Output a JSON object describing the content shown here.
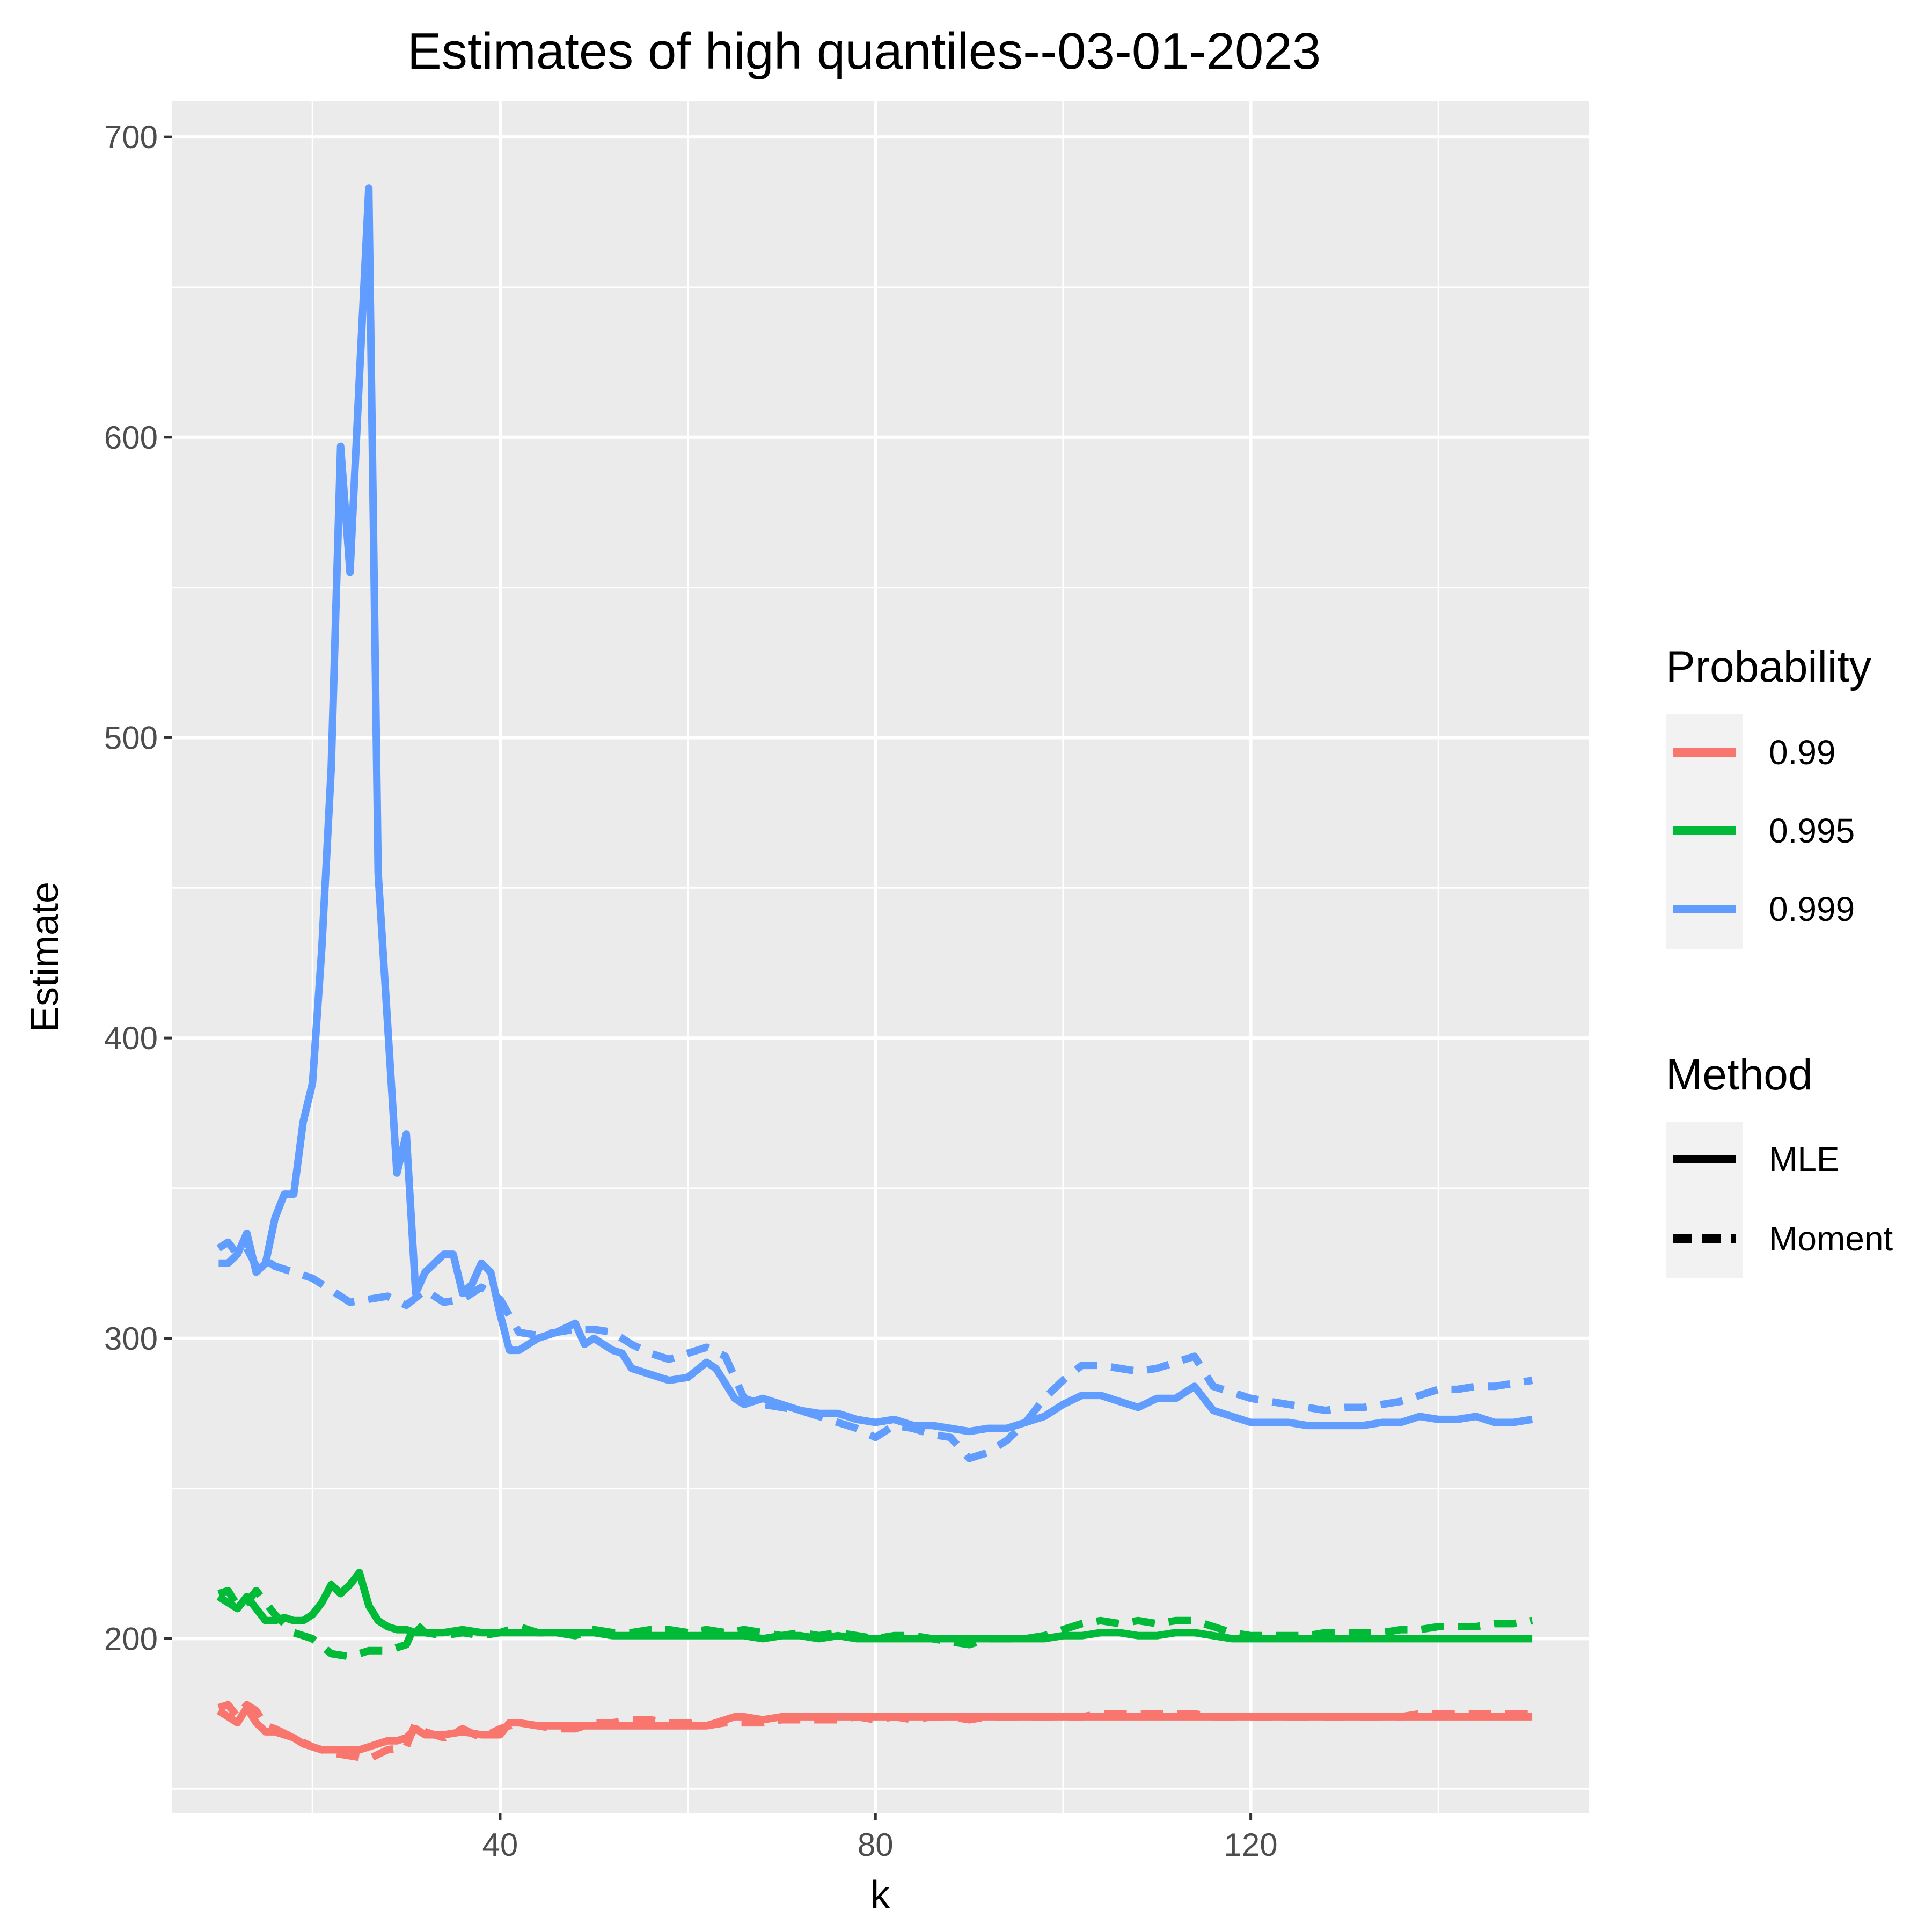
{
  "chart_data": {
    "type": "line",
    "title": "Estimates of high quantiles--03-01-2023",
    "xlabel": "k",
    "ylabel": "Estimate",
    "xlim": [
      5,
      156
    ],
    "ylim": [
      142,
      712
    ],
    "x_ticks": [
      40,
      80,
      120
    ],
    "y_ticks": [
      200,
      300,
      400,
      500,
      600,
      700
    ],
    "x_tick_labels": [
      "40",
      "80",
      "120"
    ],
    "y_tick_labels": [
      "200",
      "300",
      "400",
      "500",
      "600",
      "700"
    ],
    "grid": true,
    "background": "#ebebeb",
    "legend_placement": "right",
    "legends": [
      {
        "title": "Probability",
        "entries": [
          {
            "label": "0.99",
            "color": "#f8766d"
          },
          {
            "label": "0.995",
            "color": "#00ba38"
          },
          {
            "label": "0.999",
            "color": "#619cff"
          }
        ]
      },
      {
        "title": "Method",
        "entries": [
          {
            "label": "MLE",
            "linetype": "solid",
            "color": "#000000"
          },
          {
            "label": "Moment",
            "linetype": "dashed",
            "color": "#000000"
          }
        ]
      }
    ],
    "series": [
      {
        "probability": "0.999",
        "method": "MLE",
        "color": "#619cff",
        "dashed": false,
        "x": [
          10,
          11,
          12,
          13,
          14,
          15,
          16,
          17,
          18,
          19,
          20,
          21,
          22,
          23,
          24,
          25,
          26,
          27,
          28,
          29,
          30,
          31,
          32,
          34,
          35,
          36,
          37,
          38,
          39,
          40,
          41,
          42,
          44,
          46,
          48,
          49,
          50,
          52,
          53,
          54,
          56,
          58,
          60,
          62,
          63,
          64,
          65,
          66,
          68,
          70,
          72,
          74,
          76,
          78,
          80,
          82,
          84,
          86,
          88,
          90,
          92,
          94,
          96,
          98,
          100,
          102,
          104,
          106,
          108,
          110,
          112,
          114,
          115,
          116,
          118,
          120,
          122,
          124,
          126,
          128,
          130,
          132,
          134,
          136,
          138,
          140,
          142,
          144,
          146,
          148,
          150
        ],
        "y": [
          325,
          325,
          328,
          335,
          322,
          325,
          340,
          348,
          348,
          372,
          385,
          430,
          490,
          597,
          555,
          620,
          683,
          455,
          405,
          355,
          368,
          315,
          322,
          328,
          328,
          315,
          318,
          325,
          322,
          308,
          296,
          296,
          300,
          302,
          305,
          298,
          300,
          296,
          295,
          290,
          288,
          286,
          287,
          292,
          290,
          285,
          280,
          278,
          280,
          278,
          276,
          275,
          275,
          273,
          272,
          273,
          271,
          271,
          270,
          269,
          270,
          270,
          272,
          274,
          278,
          281,
          281,
          279,
          277,
          280,
          280,
          284,
          280,
          276,
          274,
          272,
          272,
          272,
          271,
          271,
          271,
          271,
          272,
          272,
          274,
          273,
          273,
          274,
          272,
          272,
          273
        ]
      },
      {
        "probability": "0.999",
        "method": "Moment",
        "color": "#619cff",
        "dashed": true,
        "x": [
          10,
          11,
          12,
          13,
          14,
          15,
          16,
          18,
          20,
          22,
          24,
          26,
          28,
          30,
          32,
          34,
          36,
          38,
          40,
          42,
          44,
          46,
          48,
          50,
          52,
          54,
          56,
          58,
          60,
          62,
          64,
          66,
          68,
          70,
          72,
          74,
          76,
          78,
          80,
          82,
          84,
          86,
          88,
          90,
          92,
          94,
          96,
          98,
          100,
          102,
          104,
          106,
          108,
          110,
          112,
          114,
          116,
          118,
          120,
          122,
          124,
          126,
          128,
          130,
          132,
          134,
          136,
          138,
          140,
          142,
          144,
          146,
          148,
          150
        ],
        "y": [
          330,
          332,
          328,
          330,
          324,
          326,
          324,
          322,
          320,
          316,
          312,
          313,
          314,
          311,
          316,
          312,
          313,
          317,
          313,
          302,
          301,
          302,
          303,
          303,
          302,
          298,
          295,
          293,
          295,
          297,
          294,
          280,
          278,
          277,
          276,
          274,
          272,
          270,
          267,
          271,
          270,
          268,
          267,
          260,
          262,
          266,
          272,
          280,
          286,
          291,
          291,
          290,
          289,
          290,
          292,
          294,
          284,
          282,
          280,
          279,
          278,
          277,
          276,
          277,
          277,
          278,
          279,
          281,
          283,
          283,
          284,
          284,
          285,
          286
        ]
      },
      {
        "probability": "0.995",
        "method": "MLE",
        "color": "#00ba38",
        "dashed": false,
        "x": [
          10,
          11,
          12,
          13,
          14,
          15,
          16,
          17,
          18,
          19,
          20,
          21,
          22,
          23,
          24,
          25,
          26,
          27,
          28,
          29,
          30,
          31,
          32,
          34,
          36,
          38,
          40,
          42,
          44,
          46,
          48,
          50,
          52,
          54,
          56,
          58,
          60,
          62,
          64,
          66,
          68,
          70,
          72,
          74,
          76,
          78,
          80,
          82,
          84,
          86,
          88,
          90,
          92,
          94,
          96,
          98,
          100,
          102,
          104,
          106,
          108,
          110,
          112,
          114,
          116,
          118,
          120,
          122,
          124,
          126,
          128,
          130,
          132,
          134,
          136,
          138,
          140,
          142,
          144,
          146,
          148,
          150
        ],
        "y": [
          214,
          212,
          210,
          214,
          210,
          206,
          206,
          207,
          206,
          206,
          208,
          212,
          218,
          215,
          218,
          222,
          211,
          206,
          204,
          203,
          203,
          202,
          202,
          202,
          203,
          202,
          202,
          202,
          202,
          202,
          202,
          202,
          201,
          201,
          201,
          201,
          201,
          201,
          201,
          201,
          200,
          201,
          201,
          200,
          201,
          200,
          200,
          200,
          200,
          200,
          200,
          200,
          200,
          200,
          200,
          200,
          201,
          201,
          202,
          202,
          201,
          201,
          202,
          202,
          201,
          200,
          200,
          200,
          200,
          200,
          200,
          200,
          200,
          200,
          200,
          200,
          200,
          200,
          200,
          200,
          200,
          200
        ]
      },
      {
        "probability": "0.995",
        "method": "Moment",
        "color": "#00ba38",
        "dashed": true,
        "x": [
          10,
          11,
          12,
          13,
          14,
          15,
          16,
          18,
          20,
          22,
          24,
          26,
          28,
          30,
          31,
          32,
          34,
          36,
          38,
          40,
          42,
          44,
          46,
          48,
          50,
          52,
          54,
          56,
          58,
          60,
          62,
          64,
          66,
          68,
          70,
          72,
          74,
          76,
          78,
          80,
          82,
          84,
          86,
          88,
          90,
          92,
          94,
          96,
          98,
          100,
          102,
          104,
          106,
          108,
          110,
          112,
          114,
          116,
          118,
          120,
          122,
          124,
          126,
          128,
          130,
          132,
          134,
          136,
          138,
          140,
          142,
          144,
          146,
          148,
          150
        ],
        "y": [
          215,
          216,
          211,
          212,
          216,
          212,
          208,
          202,
          200,
          195,
          194,
          196,
          196,
          198,
          205,
          202,
          201,
          202,
          201,
          202,
          204,
          202,
          202,
          201,
          203,
          202,
          202,
          203,
          203,
          202,
          203,
          202,
          203,
          202,
          201,
          202,
          201,
          202,
          201,
          200,
          201,
          201,
          200,
          199,
          198,
          200,
          200,
          200,
          201,
          203,
          205,
          206,
          205,
          206,
          205,
          206,
          206,
          204,
          202,
          201,
          201,
          201,
          201,
          202,
          202,
          202,
          202,
          203,
          203,
          204,
          204,
          204,
          205,
          205,
          206
        ]
      },
      {
        "probability": "0.99",
        "method": "MLE",
        "color": "#f8766d",
        "dashed": false,
        "x": [
          10,
          11,
          12,
          13,
          14,
          15,
          16,
          17,
          18,
          19,
          20,
          21,
          22,
          23,
          24,
          25,
          26,
          27,
          28,
          29,
          30,
          31,
          32,
          34,
          36,
          38,
          40,
          41,
          42,
          44,
          46,
          48,
          50,
          52,
          54,
          56,
          58,
          60,
          62,
          64,
          65,
          66,
          68,
          70,
          72,
          74,
          76,
          78,
          80,
          82,
          84,
          86,
          88,
          90,
          92,
          94,
          96,
          98,
          100,
          102,
          104,
          106,
          108,
          110,
          112,
          114,
          116,
          118,
          120,
          122,
          124,
          126,
          128,
          130,
          132,
          134,
          136,
          138,
          140,
          142,
          144,
          146,
          148,
          150
        ],
        "y": [
          176,
          174,
          172,
          177,
          172,
          169,
          169,
          168,
          167,
          165,
          164,
          163,
          163,
          163,
          163,
          163,
          164,
          165,
          166,
          166,
          167,
          170,
          168,
          168,
          169,
          168,
          168,
          172,
          172,
          171,
          171,
          171,
          171,
          171,
          171,
          171,
          171,
          171,
          171,
          173,
          174,
          174,
          173,
          174,
          174,
          174,
          174,
          174,
          174,
          174,
          174,
          174,
          174,
          174,
          174,
          174,
          174,
          174,
          174,
          174,
          174,
          174,
          174,
          174,
          174,
          174,
          174,
          174,
          174,
          174,
          174,
          174,
          174,
          174,
          174,
          174,
          174,
          174,
          174,
          174,
          174,
          174,
          174,
          174
        ]
      },
      {
        "probability": "0.99",
        "method": "Moment",
        "color": "#f8766d",
        "dashed": true,
        "x": [
          10,
          11,
          12,
          13,
          14,
          15,
          16,
          18,
          20,
          22,
          24,
          26,
          28,
          30,
          31,
          32,
          34,
          36,
          38,
          40,
          42,
          44,
          46,
          48,
          50,
          52,
          54,
          56,
          58,
          60,
          62,
          64,
          66,
          68,
          70,
          72,
          74,
          76,
          78,
          80,
          82,
          84,
          86,
          88,
          90,
          92,
          94,
          96,
          98,
          100,
          102,
          104,
          106,
          108,
          110,
          112,
          114,
          116,
          118,
          120,
          122,
          124,
          126,
          128,
          130,
          132,
          134,
          136,
          138,
          140,
          142,
          144,
          146,
          148,
          150
        ],
        "y": [
          177,
          178,
          174,
          178,
          176,
          171,
          170,
          167,
          164,
          162,
          161,
          160,
          163,
          164,
          172,
          169,
          167,
          170,
          167,
          170,
          172,
          171,
          170,
          170,
          172,
          172,
          173,
          173,
          172,
          172,
          171,
          172,
          172,
          172,
          173,
          173,
          173,
          173,
          174,
          173,
          174,
          173,
          174,
          174,
          173,
          174,
          174,
          174,
          174,
          174,
          174,
          175,
          175,
          175,
          175,
          175,
          175,
          174,
          174,
          174,
          174,
          174,
          174,
          174,
          174,
          174,
          174,
          174,
          175,
          175,
          175,
          175,
          175,
          175,
          175
        ]
      }
    ]
  }
}
